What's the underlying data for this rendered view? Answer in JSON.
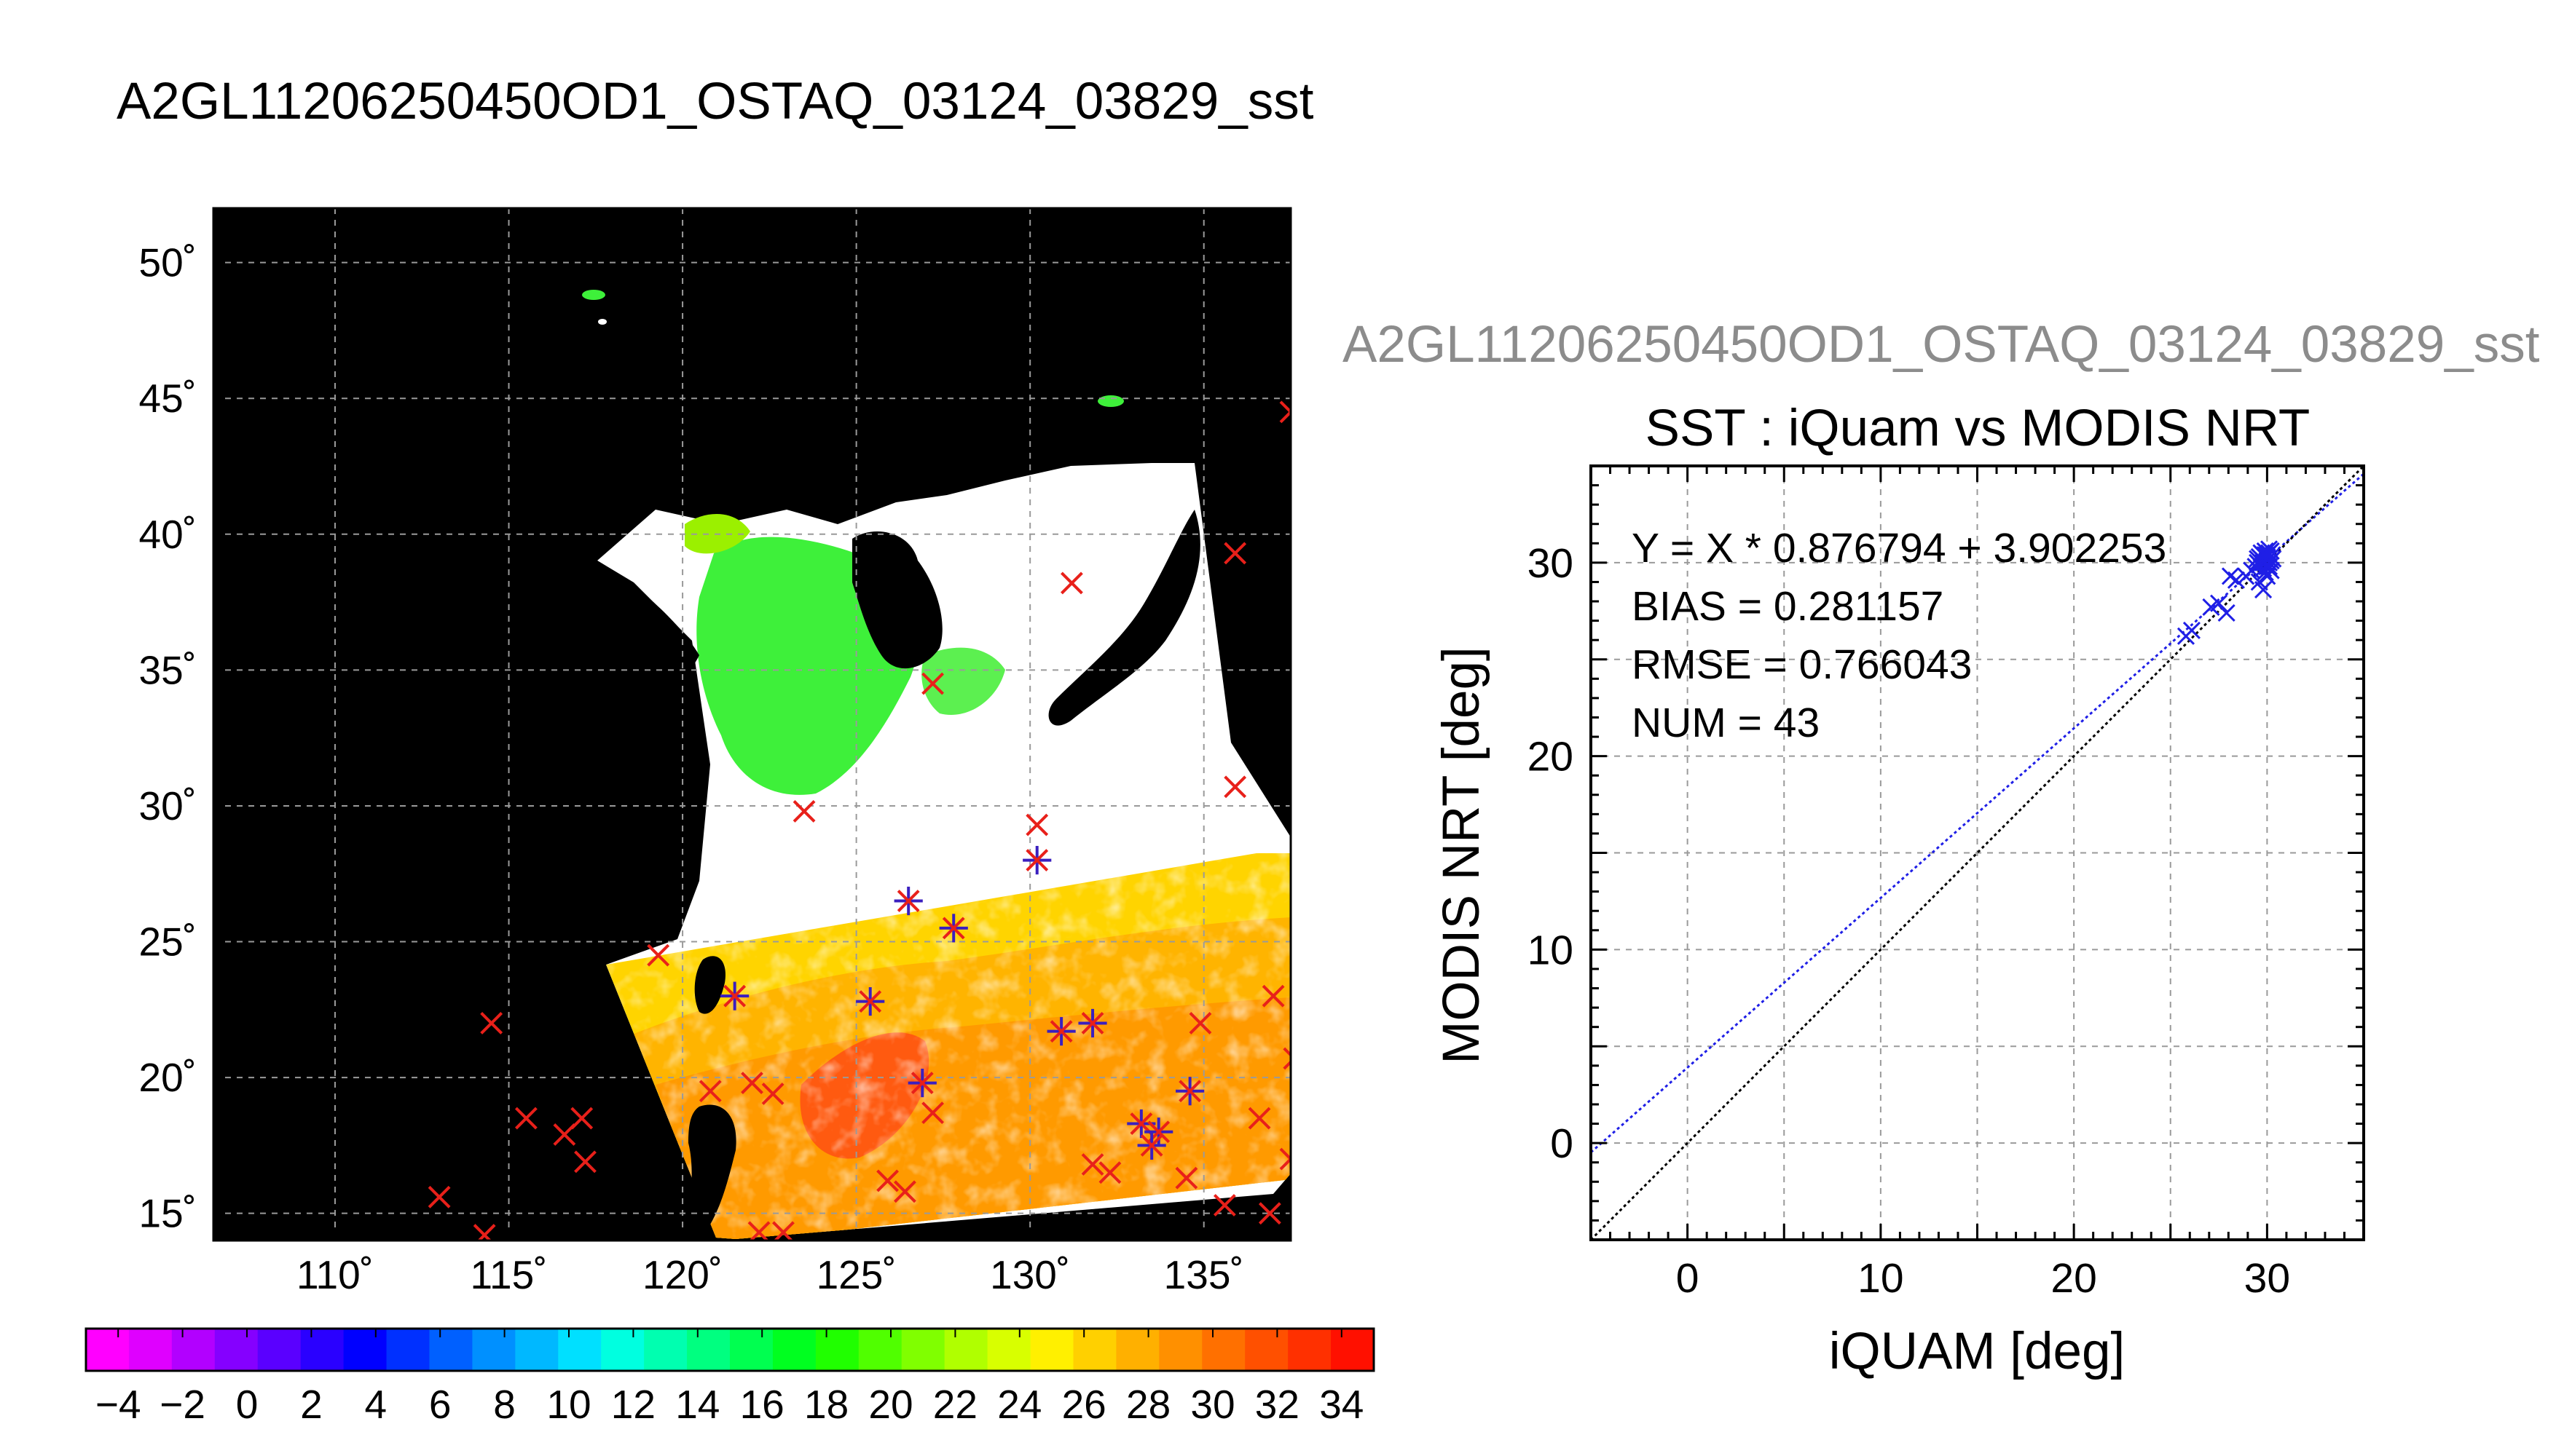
{
  "figure": {
    "main_title": "A2GL11206250450OD1_OSTAQ_03124_03829_sst",
    "right_title": "A2GL11206250450OD1_OSTAQ_03124_03829_sst"
  },
  "map": {
    "lon_range": [
      106.5,
      137.5
    ],
    "lat_range": [
      14,
      52
    ],
    "lon_ticks": [
      110,
      115,
      120,
      125,
      130,
      135
    ],
    "lat_ticks": [
      15,
      20,
      25,
      30,
      35,
      40,
      45,
      50
    ],
    "lon_tick_labels": [
      "110˚",
      "115˚",
      "120˚",
      "125˚",
      "130˚",
      "135˚"
    ],
    "lat_tick_labels": [
      "15˚",
      "20˚",
      "25˚",
      "30˚",
      "35˚",
      "40˚",
      "45˚",
      "50˚"
    ],
    "background_color": "#000000",
    "cloud_color": "#ffffff",
    "marker_color": "#e8201a",
    "matched_marker_color": "#3a1fbf",
    "markers": [
      {
        "lon": 131.2,
        "lat": 38.2,
        "matched": false
      },
      {
        "lon": 135.9,
        "lat": 39.3,
        "matched": false
      },
      {
        "lon": 137.5,
        "lat": 44.5,
        "matched": false
      },
      {
        "lon": 135.9,
        "lat": 30.7,
        "matched": false
      },
      {
        "lon": 127.2,
        "lat": 34.5,
        "matched": false
      },
      {
        "lon": 123.5,
        "lat": 29.8,
        "matched": false
      },
      {
        "lon": 130.2,
        "lat": 29.3,
        "matched": false
      },
      {
        "lon": 130.2,
        "lat": 28.0,
        "matched": true
      },
      {
        "lon": 126.5,
        "lat": 26.5,
        "matched": true
      },
      {
        "lon": 127.8,
        "lat": 25.5,
        "matched": true
      },
      {
        "lon": 119.3,
        "lat": 24.5,
        "matched": false
      },
      {
        "lon": 121.5,
        "lat": 23.0,
        "matched": true
      },
      {
        "lon": 125.4,
        "lat": 22.8,
        "matched": true
      },
      {
        "lon": 130.9,
        "lat": 21.7,
        "matched": true
      },
      {
        "lon": 131.8,
        "lat": 22.0,
        "matched": true
      },
      {
        "lon": 134.9,
        "lat": 22.0,
        "matched": false
      },
      {
        "lon": 137.0,
        "lat": 23.0,
        "matched": false
      },
      {
        "lon": 137.6,
        "lat": 20.7,
        "matched": false
      },
      {
        "lon": 126.9,
        "lat": 19.8,
        "matched": true
      },
      {
        "lon": 127.2,
        "lat": 18.7,
        "matched": false
      },
      {
        "lon": 134.6,
        "lat": 19.5,
        "matched": true
      },
      {
        "lon": 133.2,
        "lat": 18.3,
        "matched": true
      },
      {
        "lon": 133.7,
        "lat": 18.0,
        "matched": true
      },
      {
        "lon": 133.5,
        "lat": 17.5,
        "matched": true
      },
      {
        "lon": 122.0,
        "lat": 19.8,
        "matched": false
      },
      {
        "lon": 122.6,
        "lat": 19.4,
        "matched": false
      },
      {
        "lon": 120.8,
        "lat": 19.5,
        "matched": false
      },
      {
        "lon": 114.5,
        "lat": 22.0,
        "matched": false
      },
      {
        "lon": 115.5,
        "lat": 18.5,
        "matched": false
      },
      {
        "lon": 116.6,
        "lat": 17.9,
        "matched": false
      },
      {
        "lon": 117.1,
        "lat": 18.5,
        "matched": false
      },
      {
        "lon": 117.2,
        "lat": 16.9,
        "matched": false
      },
      {
        "lon": 113.0,
        "lat": 15.6,
        "matched": false
      },
      {
        "lon": 114.3,
        "lat": 14.2,
        "matched": false
      },
      {
        "lon": 122.2,
        "lat": 14.3,
        "matched": false
      },
      {
        "lon": 122.9,
        "lat": 14.3,
        "matched": false
      },
      {
        "lon": 125.9,
        "lat": 16.2,
        "matched": false
      },
      {
        "lon": 126.4,
        "lat": 15.8,
        "matched": false
      },
      {
        "lon": 131.8,
        "lat": 16.8,
        "matched": false
      },
      {
        "lon": 132.3,
        "lat": 16.5,
        "matched": false
      },
      {
        "lon": 134.5,
        "lat": 16.3,
        "matched": false
      },
      {
        "lon": 135.6,
        "lat": 15.3,
        "matched": false
      },
      {
        "lon": 136.9,
        "lat": 15.0,
        "matched": false
      },
      {
        "lon": 137.5,
        "lat": 17.0,
        "matched": false
      },
      {
        "lon": 136.6,
        "lat": 18.5,
        "matched": false
      }
    ]
  },
  "colorbar": {
    "tick_labels": [
      "−4",
      "−2",
      "0",
      "2",
      "4",
      "6",
      "8",
      "10",
      "12",
      "14",
      "16",
      "18",
      "20",
      "22",
      "24",
      "26",
      "28",
      "30",
      "32",
      "34"
    ],
    "min": -5,
    "max": 35,
    "colors": [
      "#ff00ff",
      "#df00ff",
      "#b200ff",
      "#8500ff",
      "#5a00ff",
      "#2a00ff",
      "#0000ff",
      "#0030ff",
      "#0060ff",
      "#0090ff",
      "#00b8ff",
      "#00e0ff",
      "#00ffe0",
      "#00ffb0",
      "#00ff80",
      "#00ff50",
      "#00ff20",
      "#20ff00",
      "#50ff00",
      "#80ff00",
      "#b0ff00",
      "#d8ff00",
      "#fff000",
      "#ffd000",
      "#ffb000",
      "#ff9000",
      "#ff7000",
      "#ff5000",
      "#ff3000",
      "#ff1000"
    ]
  },
  "scatter": {
    "title": "SST : iQuam vs MODIS NRT",
    "xlabel": "iQUAM [deg]",
    "ylabel": "MODIS NRT [deg]",
    "stats": [
      "Y = X * 0.876794 + 3.902253",
      "BIAS = 0.281157",
      "RMSE = 0.766043",
      "NUM = 43"
    ]
  },
  "chart_data": {
    "type": "scatter",
    "title": "SST : iQuam vs MODIS NRT",
    "xlabel": "iQUAM [deg]",
    "ylabel": "MODIS NRT [deg]",
    "xlim": [
      -5,
      35
    ],
    "ylim": [
      -5,
      35
    ],
    "xticks": [
      0,
      10,
      20,
      30
    ],
    "yticks": [
      0,
      10,
      20,
      30
    ],
    "grid": true,
    "series": [
      {
        "color": "#1f1fe6",
        "x": [
          25.8,
          26.1,
          27.1,
          27.5,
          27.9,
          28.1,
          28.4,
          28.9,
          29.2,
          29.4,
          29.5,
          29.5,
          29.6,
          29.6,
          29.7,
          29.7,
          29.8,
          29.8,
          29.8,
          29.9,
          29.9,
          29.9,
          29.9,
          30.0,
          30.0,
          30.0,
          30.0,
          30.0,
          30.1,
          30.1,
          30.1,
          30.1,
          30.2,
          30.2,
          30.2,
          30.3,
          29.6,
          29.8,
          30.1,
          29.9,
          30.0,
          29.8,
          30.2
        ],
        "y": [
          26.2,
          26.5,
          27.7,
          27.9,
          27.4,
          29.3,
          29.1,
          29.3,
          29.6,
          29.8,
          30.0,
          30.2,
          29.9,
          30.3,
          30.0,
          30.5,
          30.1,
          29.7,
          30.4,
          30.0,
          30.3,
          30.6,
          29.5,
          30.1,
          30.3,
          30.4,
          29.9,
          29.3,
          30.0,
          30.2,
          30.5,
          29.8,
          30.1,
          30.3,
          29.6,
          30.2,
          29.0,
          28.6,
          30.7,
          30.4,
          29.8,
          30.0,
          30.6
        ]
      }
    ],
    "lines": [
      {
        "kind": "fit",
        "slope": 0.876794,
        "intercept": 3.902253,
        "color": "#1f1fe6"
      },
      {
        "kind": "one-to-one",
        "slope": 1,
        "intercept": 0,
        "color": "#000000"
      }
    ]
  }
}
